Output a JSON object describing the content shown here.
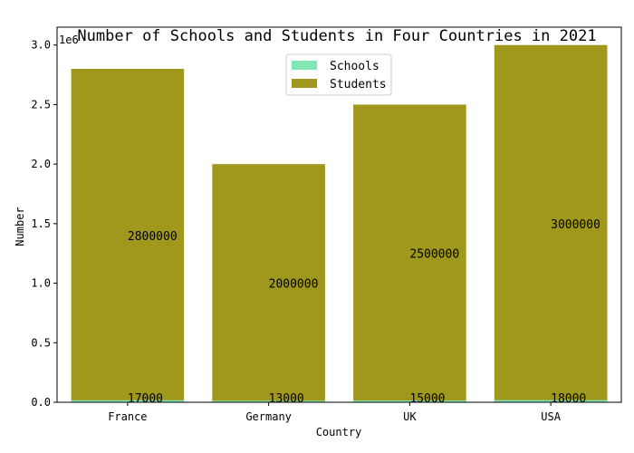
{
  "chart_data": {
    "type": "bar",
    "title": "Number of Schools and Students in Four Countries in 2021",
    "xlabel": "Country",
    "ylabel": "Number",
    "y_offset_label": "1e6",
    "categories": [
      "France",
      "Germany",
      "UK",
      "USA"
    ],
    "series": [
      {
        "name": "Schools",
        "values": [
          17000,
          13000,
          15000,
          18000
        ],
        "color": "#80e6b3"
      },
      {
        "name": "Students",
        "values": [
          2800000,
          2000000,
          2500000,
          3000000
        ],
        "color": "#a0981c"
      }
    ],
    "data_labels": {
      "Schools": [
        "17000",
        "13000",
        "15000",
        "18000"
      ],
      "Students": [
        "2800000",
        "2000000",
        "2500000",
        "3000000"
      ]
    },
    "ylim": [
      0,
      3150000
    ],
    "yticks": [
      0,
      500000,
      1000000,
      1500000,
      2000000,
      2500000,
      3000000
    ],
    "ytick_labels": [
      "0.0",
      "0.5",
      "1.0",
      "1.5",
      "2.0",
      "2.5",
      "3.0"
    ],
    "legend": "upper-center",
    "grid": false
  }
}
